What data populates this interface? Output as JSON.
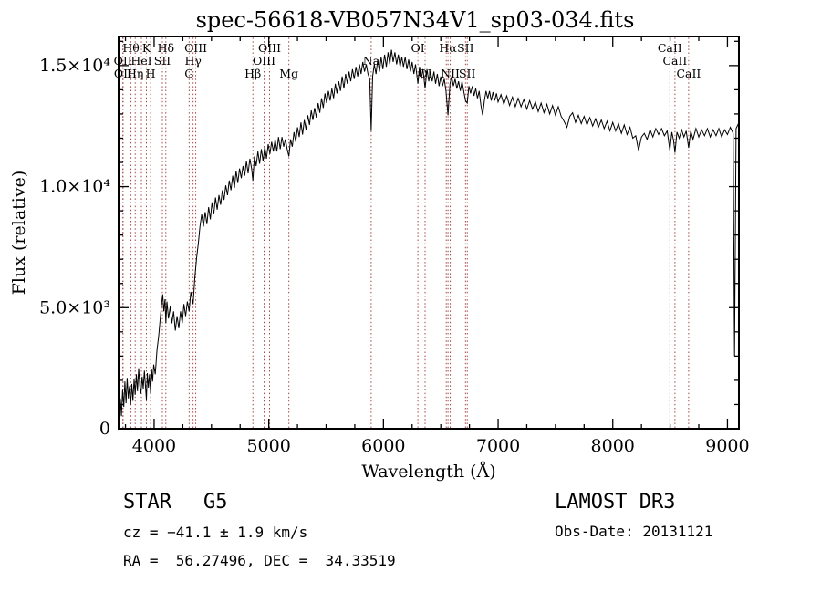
{
  "title": "spec-56618-VB057N34V1_sp03-034.fits",
  "footer": {
    "object_type": "STAR",
    "subclass": "G5",
    "cz_line": "cz = −41.1 ± 1.9 km/s",
    "radec_line": "RA =  56.27496, DEC =  34.33519",
    "survey": "LAMOST DR3",
    "obs_date_line": "Obs-Date: 20131121"
  },
  "chart_data": {
    "type": "line",
    "title": "spec-56618-VB057N34V1_sp03-034.fits",
    "xlabel": "Wavelength (Å)",
    "ylabel": "Flux (relative)",
    "xlim": [
      3690,
      9100
    ],
    "ylim": [
      0,
      16200
    ],
    "x_major_ticks": [
      4000,
      5000,
      6000,
      7000,
      8000,
      9000
    ],
    "x_minor_step": 250,
    "y_major_ticks": [
      0,
      5000,
      10000,
      15000
    ],
    "y_tick_labels": [
      "0",
      "5.0×10³",
      "1.0×10⁴",
      "1.5×10⁴"
    ],
    "y_minor_step": 1000,
    "grid": false,
    "legend": "none",
    "line_color": "#000000",
    "marker_color": "#993333",
    "spectral_lines": [
      {
        "label": "OII",
        "wavelength": 3727,
        "row": 1
      },
      {
        "label": "OII",
        "wavelength": 3729,
        "row": 2
      },
      {
        "label": "Hθ",
        "wavelength": 3798,
        "row": 0
      },
      {
        "label": "Hη",
        "wavelength": 3835,
        "row": 2
      },
      {
        "label": "HeI",
        "wavelength": 3889,
        "row": 1
      },
      {
        "label": "K",
        "wavelength": 3933,
        "row": 0
      },
      {
        "label": "H",
        "wavelength": 3969,
        "row": 2
      },
      {
        "label": "SII",
        "wavelength": 4072,
        "row": 1
      },
      {
        "label": "Hδ",
        "wavelength": 4102,
        "row": 0
      },
      {
        "label": "G",
        "wavelength": 4305,
        "row": 2
      },
      {
        "label": "Hγ",
        "wavelength": 4340,
        "row": 1
      },
      {
        "label": "OIII",
        "wavelength": 4363,
        "row": 0
      },
      {
        "label": "Hβ",
        "wavelength": 4861,
        "row": 2
      },
      {
        "label": "OIII",
        "wavelength": 4959,
        "row": 1
      },
      {
        "label": "OIII",
        "wavelength": 5007,
        "row": 0
      },
      {
        "label": "Mg",
        "wavelength": 5175,
        "row": 2
      },
      {
        "label": "Na",
        "wavelength": 5893,
        "row": 1
      },
      {
        "label": "OI",
        "wavelength": 6300,
        "row": 0
      },
      {
        "label": "OI",
        "wavelength": 6363,
        "row": 2
      },
      {
        "label": "",
        "wavelength": 6548,
        "row": null
      },
      {
        "label": "Hα",
        "wavelength": 6563,
        "row": 0
      },
      {
        "label": "NII",
        "wavelength": 6583,
        "row": 2
      },
      {
        "label": "SII",
        "wavelength": 6716,
        "row": 0
      },
      {
        "label": "SII",
        "wavelength": 6731,
        "row": 2
      },
      {
        "label": "CaII",
        "wavelength": 8498,
        "row": 0
      },
      {
        "label": "CaII",
        "wavelength": 8542,
        "row": 1
      },
      {
        "label": "CaII",
        "wavelength": 8662,
        "row": 2
      }
    ],
    "series_name": "flux",
    "points": [
      [
        3695,
        200
      ],
      [
        3705,
        1250
      ],
      [
        3715,
        520
      ],
      [
        3725,
        1600
      ],
      [
        3735,
        900
      ],
      [
        3745,
        1950
      ],
      [
        3755,
        1050
      ],
      [
        3765,
        2100
      ],
      [
        3775,
        1250
      ],
      [
        3785,
        1750
      ],
      [
        3795,
        1000
      ],
      [
        3805,
        1850
      ],
      [
        3815,
        1150
      ],
      [
        3825,
        2050
      ],
      [
        3835,
        1400
      ],
      [
        3845,
        2250
      ],
      [
        3855,
        1550
      ],
      [
        3865,
        2500
      ],
      [
        3875,
        1750
      ],
      [
        3885,
        1450
      ],
      [
        3895,
        2150
      ],
      [
        3905,
        1650
      ],
      [
        3915,
        2400
      ],
      [
        3925,
        1750
      ],
      [
        3933,
        1200
      ],
      [
        3941,
        2300
      ],
      [
        3950,
        1700
      ],
      [
        3960,
        2250
      ],
      [
        3969,
        1450
      ],
      [
        3978,
        2450
      ],
      [
        3987,
        1950
      ],
      [
        3996,
        2650
      ],
      [
        4010,
        2250
      ],
      [
        4025,
        3250
      ],
      [
        4040,
        3850
      ],
      [
        4055,
        4650
      ],
      [
        4065,
        5150
      ],
      [
        4075,
        5550
      ],
      [
        4085,
        4850
      ],
      [
        4095,
        5350
      ],
      [
        4102,
        4350
      ],
      [
        4112,
        5250
      ],
      [
        4125,
        4550
      ],
      [
        4140,
        5050
      ],
      [
        4155,
        4350
      ],
      [
        4170,
        4850
      ],
      [
        4185,
        4050
      ],
      [
        4200,
        4650
      ],
      [
        4215,
        4150
      ],
      [
        4230,
        4850
      ],
      [
        4245,
        4350
      ],
      [
        4260,
        5150
      ],
      [
        4275,
        4650
      ],
      [
        4290,
        5250
      ],
      [
        4305,
        4850
      ],
      [
        4320,
        5650
      ],
      [
        4340,
        5150
      ],
      [
        4355,
        6250
      ],
      [
        4370,
        7050
      ],
      [
        4385,
        7650
      ],
      [
        4400,
        8350
      ],
      [
        4415,
        8850
      ],
      [
        4430,
        8350
      ],
      [
        4445,
        8950
      ],
      [
        4460,
        8450
      ],
      [
        4475,
        9150
      ],
      [
        4490,
        8650
      ],
      [
        4505,
        9350
      ],
      [
        4520,
        8850
      ],
      [
        4535,
        9550
      ],
      [
        4550,
        9050
      ],
      [
        4565,
        9650
      ],
      [
        4580,
        9250
      ],
      [
        4595,
        9850
      ],
      [
        4610,
        9450
      ],
      [
        4625,
        10050
      ],
      [
        4640,
        9650
      ],
      [
        4655,
        10250
      ],
      [
        4670,
        9850
      ],
      [
        4685,
        10450
      ],
      [
        4700,
        9950
      ],
      [
        4715,
        10650
      ],
      [
        4730,
        10150
      ],
      [
        4745,
        10750
      ],
      [
        4760,
        10350
      ],
      [
        4775,
        10850
      ],
      [
        4790,
        10450
      ],
      [
        4805,
        11050
      ],
      [
        4820,
        10550
      ],
      [
        4835,
        11150
      ],
      [
        4850,
        10750
      ],
      [
        4861,
        10250
      ],
      [
        4875,
        11250
      ],
      [
        4890,
        10850
      ],
      [
        4905,
        11450
      ],
      [
        4920,
        10950
      ],
      [
        4935,
        11550
      ],
      [
        4950,
        11050
      ],
      [
        4965,
        11650
      ],
      [
        4980,
        11150
      ],
      [
        4995,
        11750
      ],
      [
        5010,
        11350
      ],
      [
        5025,
        11850
      ],
      [
        5040,
        11450
      ],
      [
        5055,
        11950
      ],
      [
        5070,
        11450
      ],
      [
        5085,
        12050
      ],
      [
        5100,
        11550
      ],
      [
        5115,
        12050
      ],
      [
        5130,
        11650
      ],
      [
        5145,
        11950
      ],
      [
        5160,
        11550
      ],
      [
        5175,
        11250
      ],
      [
        5190,
        11950
      ],
      [
        5205,
        11650
      ],
      [
        5220,
        12250
      ],
      [
        5235,
        11850
      ],
      [
        5250,
        12450
      ],
      [
        5265,
        12050
      ],
      [
        5280,
        12650
      ],
      [
        5295,
        12150
      ],
      [
        5310,
        12750
      ],
      [
        5325,
        12350
      ],
      [
        5340,
        12950
      ],
      [
        5355,
        12550
      ],
      [
        5370,
        13150
      ],
      [
        5385,
        12750
      ],
      [
        5400,
        13250
      ],
      [
        5415,
        12850
      ],
      [
        5430,
        13450
      ],
      [
        5445,
        13050
      ],
      [
        5460,
        13650
      ],
      [
        5475,
        13250
      ],
      [
        5490,
        13850
      ],
      [
        5505,
        13450
      ],
      [
        5520,
        13950
      ],
      [
        5535,
        13550
      ],
      [
        5550,
        14050
      ],
      [
        5565,
        13650
      ],
      [
        5580,
        14250
      ],
      [
        5595,
        13850
      ],
      [
        5610,
        14350
      ],
      [
        5625,
        13950
      ],
      [
        5640,
        14550
      ],
      [
        5655,
        14050
      ],
      [
        5670,
        14650
      ],
      [
        5685,
        14250
      ],
      [
        5700,
        14750
      ],
      [
        5715,
        14350
      ],
      [
        5730,
        14850
      ],
      [
        5745,
        14450
      ],
      [
        5760,
        14950
      ],
      [
        5775,
        14550
      ],
      [
        5790,
        15050
      ],
      [
        5805,
        14650
      ],
      [
        5820,
        15150
      ],
      [
        5835,
        14750
      ],
      [
        5850,
        15050
      ],
      [
        5865,
        14650
      ],
      [
        5880,
        14450
      ],
      [
        5893,
        12300
      ],
      [
        5906,
        14550
      ],
      [
        5920,
        15050
      ],
      [
        5935,
        14650
      ],
      [
        5950,
        15250
      ],
      [
        5965,
        14750
      ],
      [
        5980,
        15350
      ],
      [
        5995,
        14850
      ],
      [
        6010,
        15450
      ],
      [
        6025,
        14950
      ],
      [
        6040,
        15550
      ],
      [
        6055,
        15050
      ],
      [
        6070,
        15650
      ],
      [
        6085,
        15150
      ],
      [
        6100,
        15550
      ],
      [
        6115,
        15050
      ],
      [
        6130,
        15450
      ],
      [
        6145,
        14950
      ],
      [
        6160,
        15350
      ],
      [
        6175,
        14950
      ],
      [
        6190,
        15350
      ],
      [
        6205,
        14850
      ],
      [
        6220,
        15250
      ],
      [
        6235,
        14750
      ],
      [
        6250,
        15150
      ],
      [
        6265,
        14650
      ],
      [
        6280,
        15050
      ],
      [
        6300,
        14250
      ],
      [
        6315,
        14950
      ],
      [
        6330,
        14450
      ],
      [
        6345,
        14850
      ],
      [
        6363,
        14050
      ],
      [
        6380,
        14850
      ],
      [
        6395,
        14350
      ],
      [
        6410,
        14750
      ],
      [
        6425,
        14350
      ],
      [
        6440,
        14750
      ],
      [
        6455,
        14250
      ],
      [
        6470,
        14650
      ],
      [
        6485,
        14150
      ],
      [
        6500,
        14550
      ],
      [
        6515,
        14150
      ],
      [
        6530,
        14450
      ],
      [
        6545,
        13950
      ],
      [
        6563,
        12950
      ],
      [
        6580,
        14250
      ],
      [
        6595,
        14550
      ],
      [
        6610,
        14150
      ],
      [
        6625,
        14450
      ],
      [
        6640,
        14050
      ],
      [
        6655,
        14350
      ],
      [
        6670,
        13950
      ],
      [
        6685,
        14350
      ],
      [
        6700,
        13950
      ],
      [
        6716,
        13550
      ],
      [
        6731,
        13450
      ],
      [
        6745,
        14150
      ],
      [
        6760,
        13850
      ],
      [
        6775,
        14150
      ],
      [
        6790,
        13750
      ],
      [
        6805,
        14050
      ],
      [
        6820,
        13650
      ],
      [
        6835,
        13950
      ],
      [
        6850,
        13350
      ],
      [
        6865,
        12950
      ],
      [
        6880,
        13550
      ],
      [
        6895,
        13950
      ],
      [
        6910,
        13650
      ],
      [
        6925,
        13950
      ],
      [
        6940,
        13550
      ],
      [
        6955,
        13900
      ],
      [
        6970,
        13550
      ],
      [
        6985,
        13850
      ],
      [
        7000,
        13500
      ],
      [
        7025,
        13800
      ],
      [
        7050,
        13400
      ],
      [
        7075,
        13750
      ],
      [
        7100,
        13350
      ],
      [
        7125,
        13700
      ],
      [
        7150,
        13300
      ],
      [
        7175,
        13650
      ],
      [
        7200,
        13300
      ],
      [
        7225,
        13600
      ],
      [
        7250,
        13200
      ],
      [
        7275,
        13550
      ],
      [
        7300,
        13200
      ],
      [
        7325,
        13500
      ],
      [
        7350,
        13100
      ],
      [
        7375,
        13450
      ],
      [
        7400,
        13050
      ],
      [
        7425,
        13400
      ],
      [
        7450,
        13000
      ],
      [
        7475,
        13350
      ],
      [
        7500,
        12950
      ],
      [
        7525,
        13300
      ],
      [
        7550,
        12900
      ],
      [
        7575,
        12700
      ],
      [
        7600,
        12450
      ],
      [
        7625,
        12900
      ],
      [
        7650,
        13050
      ],
      [
        7675,
        12650
      ],
      [
        7700,
        12950
      ],
      [
        7725,
        12600
      ],
      [
        7750,
        12900
      ],
      [
        7775,
        12550
      ],
      [
        7800,
        12850
      ],
      [
        7825,
        12500
      ],
      [
        7850,
        12800
      ],
      [
        7875,
        12450
      ],
      [
        7900,
        12750
      ],
      [
        7925,
        12400
      ],
      [
        7950,
        12700
      ],
      [
        7975,
        12300
      ],
      [
        8000,
        12650
      ],
      [
        8025,
        12300
      ],
      [
        8050,
        12600
      ],
      [
        8075,
        12200
      ],
      [
        8100,
        12550
      ],
      [
        8125,
        12150
      ],
      [
        8150,
        12450
      ],
      [
        8175,
        12000
      ],
      [
        8200,
        12100
      ],
      [
        8225,
        11500
      ],
      [
        8250,
        12050
      ],
      [
        8275,
        12200
      ],
      [
        8300,
        11950
      ],
      [
        8325,
        12350
      ],
      [
        8350,
        12050
      ],
      [
        8375,
        12400
      ],
      [
        8400,
        12150
      ],
      [
        8425,
        12400
      ],
      [
        8450,
        12100
      ],
      [
        8475,
        12300
      ],
      [
        8498,
        11500
      ],
      [
        8515,
        12250
      ],
      [
        8530,
        11900
      ],
      [
        8542,
        11400
      ],
      [
        8560,
        12250
      ],
      [
        8580,
        12000
      ],
      [
        8600,
        12350
      ],
      [
        8620,
        12050
      ],
      [
        8640,
        12300
      ],
      [
        8662,
        11600
      ],
      [
        8680,
        12300
      ],
      [
        8700,
        11950
      ],
      [
        8725,
        12400
      ],
      [
        8750,
        12050
      ],
      [
        8775,
        12350
      ],
      [
        8800,
        12100
      ],
      [
        8825,
        12400
      ],
      [
        8850,
        12050
      ],
      [
        8875,
        12350
      ],
      [
        8900,
        12100
      ],
      [
        8925,
        12400
      ],
      [
        8950,
        12050
      ],
      [
        8975,
        12350
      ],
      [
        9000,
        12150
      ],
      [
        9025,
        12450
      ],
      [
        9050,
        12200
      ],
      [
        9062,
        3000
      ],
      [
        9075,
        12400
      ],
      [
        9095,
        12600
      ]
    ]
  }
}
